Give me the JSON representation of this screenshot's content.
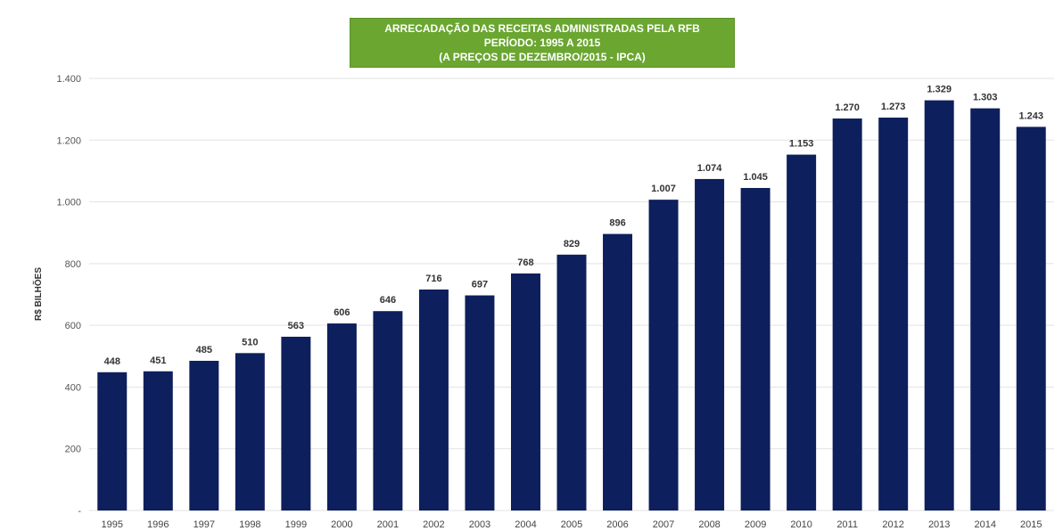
{
  "chart_data": {
    "type": "bar",
    "title_lines": [
      "ARRECADAÇÃO DAS RECEITAS ADMINISTRADAS PELA RFB",
      "PERÍODO: 1995  A 2015",
      "(A PREÇOS DE DEZEMBRO/2015  - IPCA)"
    ],
    "xlabel": "",
    "ylabel": "R$ BILHÕES",
    "ylim": [
      0,
      1400
    ],
    "yticks": [
      0,
      200,
      400,
      600,
      800,
      1000,
      1200,
      1400
    ],
    "ytick_labels": [
      "-",
      "200",
      "400",
      "600",
      "800",
      "1.000",
      "1.200",
      "1.400"
    ],
    "grid": true,
    "legend": "none",
    "bar_color": "#0d1f5c",
    "title_bg_color": "#6aa630",
    "categories": [
      "1995",
      "1996",
      "1997",
      "1998",
      "1999",
      "2000",
      "2001",
      "2002",
      "2003",
      "2004",
      "2005",
      "2006",
      "2007",
      "2008",
      "2009",
      "2010",
      "2011",
      "2012",
      "2013",
      "2014",
      "2015"
    ],
    "values": [
      448,
      451,
      485,
      510,
      563,
      606,
      646,
      716,
      697,
      768,
      829,
      896,
      1007,
      1074,
      1045,
      1153,
      1270,
      1273,
      1329,
      1303,
      1243
    ],
    "value_labels": [
      "448",
      "451",
      "485",
      "510",
      "563",
      "606",
      "646",
      "716",
      "697",
      "768",
      "829",
      "896",
      "1.007",
      "1.074",
      "1.045",
      "1.153",
      "1.270",
      "1.273",
      "1.329",
      "1.303",
      "1.243"
    ]
  }
}
